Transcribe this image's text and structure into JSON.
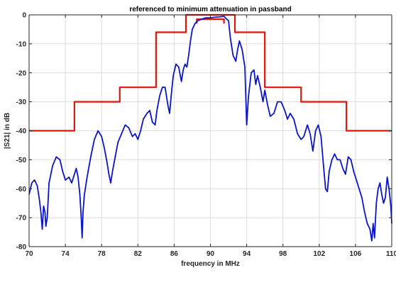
{
  "chart_data": {
    "type": "line",
    "title": "referenced to minimum attenuation in passband",
    "xlabel": "frequency in MHz",
    "ylabel": "|S21| in dB",
    "xlim": [
      70,
      110
    ],
    "ylim": [
      -80,
      0
    ],
    "xticks": [
      70,
      74,
      78,
      82,
      86,
      90,
      94,
      98,
      102,
      106,
      110
    ],
    "yticks": [
      0,
      -10,
      -20,
      -30,
      -40,
      -50,
      -60,
      -70,
      -80
    ],
    "grid": true,
    "colors": {
      "mask": "#e0140a",
      "response": "#0a14c8",
      "axis": "#262626"
    },
    "series": [
      {
        "key": "mask_outer",
        "style": "step",
        "color": "#e0140a",
        "points": [
          [
            70,
            -40
          ],
          [
            75,
            -40
          ],
          [
            75,
            -30
          ],
          [
            80,
            -30
          ],
          [
            80,
            -25
          ],
          [
            84,
            -25
          ],
          [
            84,
            -6
          ],
          [
            87.3,
            -6
          ],
          [
            87.3,
            0
          ],
          [
            92.7,
            0
          ],
          [
            92.7,
            -6
          ],
          [
            96,
            -6
          ],
          [
            96,
            -25
          ],
          [
            100,
            -25
          ],
          [
            100,
            -30
          ],
          [
            105,
            -30
          ],
          [
            105,
            -40
          ],
          [
            110,
            -40
          ]
        ]
      },
      {
        "key": "mask_inner",
        "style": "step",
        "color": "#e0140a",
        "points": [
          [
            88.5,
            -3
          ],
          [
            88.5,
            -1.5
          ],
          [
            91.5,
            -1.5
          ],
          [
            91.5,
            -3
          ]
        ]
      },
      {
        "key": "response",
        "style": "line",
        "color": "#0a14c8",
        "points": [
          [
            70,
            -62
          ],
          [
            70.3,
            -58
          ],
          [
            70.6,
            -57
          ],
          [
            70.9,
            -59
          ],
          [
            71.1,
            -63
          ],
          [
            71.3,
            -68
          ],
          [
            71.45,
            -74
          ],
          [
            71.6,
            -66
          ],
          [
            71.75,
            -68
          ],
          [
            71.85,
            -73
          ],
          [
            72.0,
            -70
          ],
          [
            72.2,
            -58
          ],
          [
            72.6,
            -52
          ],
          [
            73.0,
            -49
          ],
          [
            73.4,
            -50
          ],
          [
            73.7,
            -54
          ],
          [
            74.0,
            -57
          ],
          [
            74.4,
            -56
          ],
          [
            74.7,
            -58
          ],
          [
            75.0,
            -55
          ],
          [
            75.2,
            -53
          ],
          [
            75.4,
            -56
          ],
          [
            75.6,
            -62
          ],
          [
            75.75,
            -70
          ],
          [
            75.85,
            -77
          ],
          [
            75.95,
            -68
          ],
          [
            76.1,
            -62
          ],
          [
            76.4,
            -56
          ],
          [
            76.8,
            -49
          ],
          [
            77.2,
            -43
          ],
          [
            77.6,
            -40
          ],
          [
            78.0,
            -42
          ],
          [
            78.3,
            -46
          ],
          [
            78.6,
            -51
          ],
          [
            78.8,
            -55
          ],
          [
            79.0,
            -58
          ],
          [
            79.2,
            -54
          ],
          [
            79.5,
            -49
          ],
          [
            79.8,
            -44
          ],
          [
            80.2,
            -41
          ],
          [
            80.6,
            -38
          ],
          [
            81.0,
            -39
          ],
          [
            81.4,
            -42
          ],
          [
            81.7,
            -41
          ],
          [
            82.0,
            -43
          ],
          [
            82.3,
            -40
          ],
          [
            82.6,
            -36
          ],
          [
            83.0,
            -34
          ],
          [
            83.3,
            -33
          ],
          [
            83.6,
            -37
          ],
          [
            83.9,
            -38
          ],
          [
            84.1,
            -33
          ],
          [
            84.4,
            -28
          ],
          [
            84.7,
            -25
          ],
          [
            85.0,
            -25
          ],
          [
            85.3,
            -31
          ],
          [
            85.5,
            -34
          ],
          [
            85.7,
            -27
          ],
          [
            85.9,
            -21
          ],
          [
            86.2,
            -17
          ],
          [
            86.5,
            -18
          ],
          [
            86.8,
            -23
          ],
          [
            87.0,
            -19
          ],
          [
            87.2,
            -17
          ],
          [
            87.4,
            -18
          ],
          [
            87.6,
            -14
          ],
          [
            87.8,
            -9
          ],
          [
            88.0,
            -5
          ],
          [
            88.3,
            -3
          ],
          [
            88.6,
            -2
          ],
          [
            89.0,
            -1.5
          ],
          [
            89.5,
            -1
          ],
          [
            90.0,
            -1
          ],
          [
            90.5,
            -0.8
          ],
          [
            91.0,
            -0.7
          ],
          [
            91.5,
            -0.5
          ],
          [
            91.8,
            -1.5
          ],
          [
            92.0,
            -2
          ],
          [
            92.2,
            -8
          ],
          [
            92.5,
            -14
          ],
          [
            92.8,
            -16
          ],
          [
            93.0,
            -12
          ],
          [
            93.2,
            -9
          ],
          [
            93.5,
            -12
          ],
          [
            93.8,
            -18
          ],
          [
            94.0,
            -38
          ],
          [
            94.2,
            -28
          ],
          [
            94.5,
            -20
          ],
          [
            94.8,
            -19
          ],
          [
            95.0,
            -24
          ],
          [
            95.2,
            -21
          ],
          [
            95.5,
            -25
          ],
          [
            95.8,
            -30
          ],
          [
            96.0,
            -26
          ],
          [
            96.3,
            -31
          ],
          [
            96.6,
            -35
          ],
          [
            97.0,
            -34
          ],
          [
            97.4,
            -30
          ],
          [
            97.8,
            -30
          ],
          [
            98.2,
            -33
          ],
          [
            98.5,
            -36
          ],
          [
            98.8,
            -34
          ],
          [
            99.2,
            -36
          ],
          [
            99.6,
            -41
          ],
          [
            100.0,
            -43
          ],
          [
            100.3,
            -42
          ],
          [
            100.7,
            -38
          ],
          [
            101.0,
            -41
          ],
          [
            101.3,
            -47
          ],
          [
            101.6,
            -40
          ],
          [
            101.9,
            -38
          ],
          [
            102.2,
            -42
          ],
          [
            102.5,
            -53
          ],
          [
            102.7,
            -60
          ],
          [
            102.9,
            -61
          ],
          [
            103.1,
            -54
          ],
          [
            103.4,
            -50
          ],
          [
            103.7,
            -48
          ],
          [
            104.0,
            -50
          ],
          [
            104.3,
            -50
          ],
          [
            104.6,
            -53
          ],
          [
            104.9,
            -55
          ],
          [
            105.2,
            -49
          ],
          [
            105.5,
            -50
          ],
          [
            105.8,
            -54
          ],
          [
            106.1,
            -57
          ],
          [
            106.4,
            -60
          ],
          [
            106.7,
            -63
          ],
          [
            107.0,
            -68
          ],
          [
            107.3,
            -72
          ],
          [
            107.6,
            -74
          ],
          [
            107.8,
            -78
          ],
          [
            107.95,
            -72
          ],
          [
            108.1,
            -77
          ],
          [
            108.3,
            -65
          ],
          [
            108.5,
            -60
          ],
          [
            108.7,
            -58
          ],
          [
            108.9,
            -62
          ],
          [
            109.1,
            -65
          ],
          [
            109.3,
            -63
          ],
          [
            109.5,
            -56
          ],
          [
            109.7,
            -60
          ],
          [
            109.9,
            -66
          ],
          [
            110.0,
            -72
          ]
        ]
      }
    ]
  }
}
